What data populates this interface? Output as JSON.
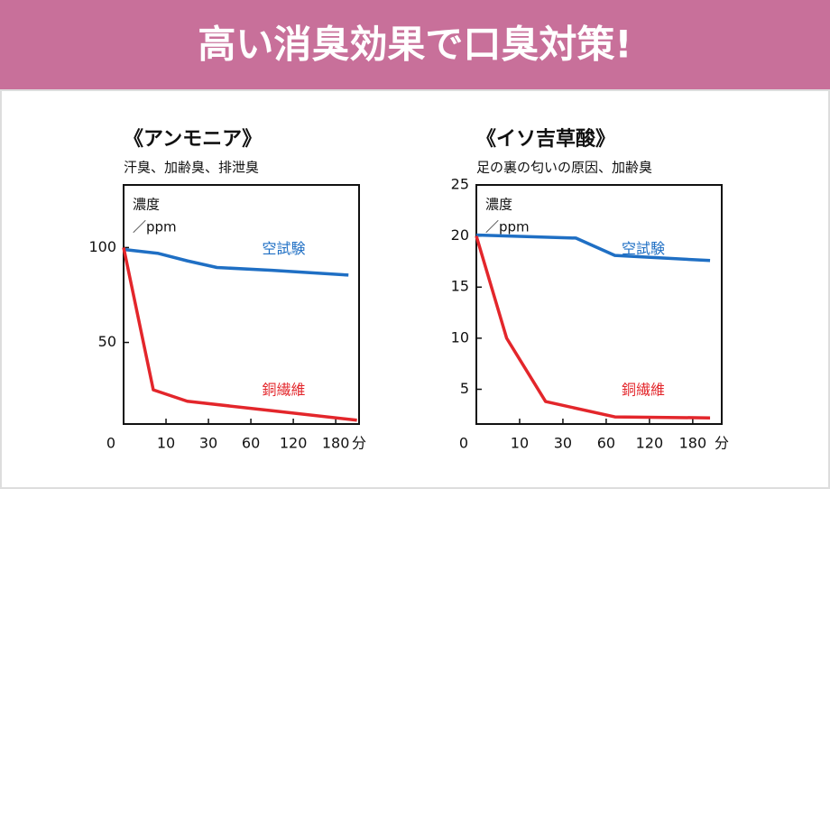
{
  "header": {
    "title": "高い消臭効果で口臭対策!"
  },
  "chart_data": [
    {
      "type": "line",
      "title": "《アンモニア》",
      "subtitle": "汗臭、加齢臭、排泄臭",
      "y_label": "濃度",
      "y_unit": "／ppm",
      "x_unit": "分",
      "xlim": [
        0,
        5.55
      ],
      "xticks": [
        0,
        {
          "value": 1,
          "label": "10"
        },
        {
          "value": 2,
          "label": "30"
        },
        {
          "value": 3,
          "label": "60"
        },
        {
          "value": 4,
          "label": "120"
        },
        {
          "value": 5,
          "label": "180"
        }
      ],
      "ylim": [
        7,
        133
      ],
      "yticks": [
        50,
        100
      ],
      "series": [
        {
          "name": "空試験",
          "color": "#1f6fc4",
          "x": [
            0,
            0.8,
            1.5,
            2.2,
            3.5,
            5.3
          ],
          "values": [
            99,
            97,
            93,
            89.5,
            88,
            85.5
          ]
        },
        {
          "name": "銅繊維",
          "color": "#e3262b",
          "x": [
            0,
            0.7,
            1.5,
            3.5,
            5.5
          ],
          "values": [
            100,
            25,
            19,
            14,
            9
          ]
        }
      ]
    },
    {
      "type": "line",
      "title": "《イソ吉草酸》",
      "subtitle": "足の裏の匂いの原因、加齢臭",
      "y_label": "濃度",
      "y_unit": "／ppm",
      "x_unit": "分",
      "xlim": [
        0,
        5.67
      ],
      "xticks": [
        0,
        {
          "value": 1,
          "label": "10"
        },
        {
          "value": 2,
          "label": "30"
        },
        {
          "value": 3,
          "label": "60"
        },
        {
          "value": 4,
          "label": "120"
        },
        {
          "value": 5,
          "label": "180"
        }
      ],
      "ylim": [
        1.6,
        25
      ],
      "yticks": [
        5,
        10,
        15,
        20,
        25
      ],
      "series": [
        {
          "name": "空試験",
          "color": "#1f6fc4",
          "x": [
            0,
            2.3,
            3.2,
            5.4
          ],
          "values": [
            20.1,
            19.8,
            18.1,
            17.6
          ]
        },
        {
          "name": "銅繊維",
          "color": "#e3262b",
          "x": [
            0,
            0.7,
            1.6,
            3.2,
            5.4
          ],
          "values": [
            20,
            10,
            3.8,
            2.3,
            2.2
          ]
        }
      ]
    }
  ]
}
